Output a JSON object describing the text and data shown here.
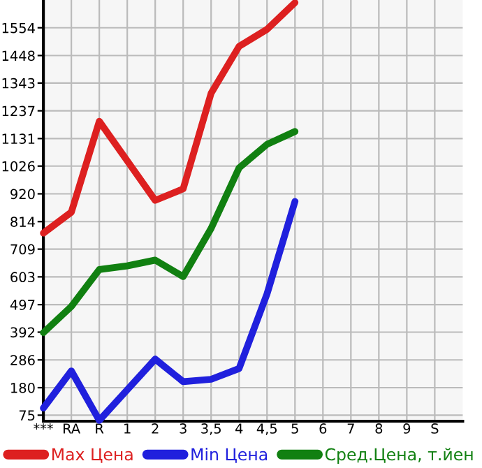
{
  "chart_data": {
    "type": "line",
    "categories": [
      "***",
      "RA",
      "R",
      "1",
      "2",
      "3",
      "3,5",
      "4",
      "4,5",
      "5",
      "6",
      "7",
      "8",
      "9",
      "S"
    ],
    "series": [
      {
        "name": "Max Цена",
        "color": "#dd2020",
        "values": [
          770,
          850,
          1197,
          1046,
          895,
          939,
          1304,
          1483,
          1548,
          1650,
          null,
          null,
          null,
          null,
          null
        ]
      },
      {
        "name": "Min Цена",
        "color": "#2020dd",
        "values": [
          102,
          244,
          55,
          172,
          289,
          203,
          212,
          253,
          538,
          891,
          null,
          null,
          null,
          null,
          null
        ]
      },
      {
        "name": "Сред.Цена, т.йен",
        "color": "#118011",
        "values": [
          390,
          490,
          631,
          645,
          667,
          604,
          788,
          1019,
          1109,
          1158,
          null,
          null,
          null,
          null,
          null
        ]
      }
    ],
    "ylim": [
      52,
      1660
    ],
    "yticks": [
      75,
      180,
      286,
      392,
      497,
      603,
      709,
      814,
      920,
      1026,
      1131,
      1237,
      1343,
      1448,
      1554
    ],
    "grid": true,
    "legend": "bottom",
    "marker": "none",
    "line_style": "solid"
  }
}
